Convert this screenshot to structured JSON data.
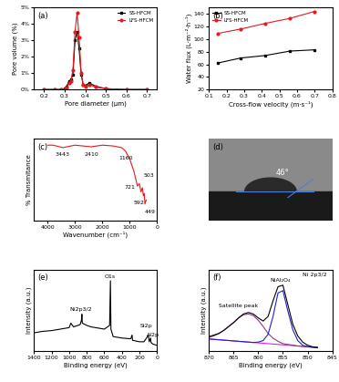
{
  "chart_data": [
    {
      "type": "line",
      "title": "(a)",
      "x_label": "Pore diameter (μm)",
      "y_label": "Pore volume (%)",
      "x": [
        0.2,
        0.25,
        0.28,
        0.3,
        0.31,
        0.32,
        0.33,
        0.34,
        0.35,
        0.36,
        0.37,
        0.38,
        0.39,
        0.4,
        0.42,
        0.45,
        0.5,
        0.6,
        0.7
      ],
      "series": [
        {
          "name": "SS-HFCM",
          "color": "#000000",
          "marker": "square",
          "values": [
            0,
            0,
            0,
            0.05,
            0.2,
            0.5,
            0.6,
            0.9,
            3.0,
            3.5,
            2.5,
            0.9,
            0.3,
            0.25,
            0.4,
            0.2,
            0.05,
            0,
            0
          ]
        },
        {
          "name": "LFS-HFCM",
          "color": "#e31a1c",
          "marker": "circle",
          "values": [
            0,
            0,
            0,
            0,
            0.1,
            0.4,
            0.5,
            1.2,
            3.5,
            4.7,
            3.2,
            1.0,
            0.3,
            0.2,
            0.3,
            0.15,
            0.05,
            0,
            0
          ]
        }
      ],
      "xlim": [
        0.15,
        0.75
      ],
      "xticks": [
        0.2,
        0.3,
        0.4,
        0.5,
        0.6,
        0.7
      ],
      "ylim": [
        0,
        5
      ],
      "yticks": [
        {
          "value": 0,
          "label": "0%"
        },
        {
          "value": 1,
          "label": "1%"
        },
        {
          "value": 2,
          "label": "2%"
        },
        {
          "value": 3,
          "label": "3%"
        },
        {
          "value": 4,
          "label": "4%"
        },
        {
          "value": 5,
          "label": "5%"
        }
      ],
      "legend": "upper right"
    },
    {
      "type": "line",
      "title": "(b)",
      "x_label": "Cross-flow velocity (m·s⁻¹)",
      "y_label": "Water flux (L·m⁻²·h⁻¹)",
      "x": [
        0.15,
        0.28,
        0.42,
        0.56,
        0.7
      ],
      "series": [
        {
          "name": "SS-HFCM",
          "color": "#000000",
          "marker": "square",
          "values": [
            62,
            70,
            74,
            81,
            83
          ]
        },
        {
          "name": "LFS-HFCM",
          "color": "#e31a1c",
          "marker": "circle",
          "values": [
            109,
            116,
            125,
            133,
            144
          ]
        }
      ],
      "xlim": [
        0.1,
        0.8
      ],
      "xticks": [
        0.1,
        0.2,
        0.3,
        0.4,
        0.5,
        0.6,
        0.7,
        0.8
      ],
      "ylim": [
        20,
        150
      ],
      "yticks": [
        20,
        40,
        60,
        80,
        100,
        120,
        140
      ],
      "legend": "upper left"
    },
    {
      "type": "line",
      "title": "(c)",
      "x_label": "Wavenumber (cm⁻¹)",
      "y_label": "% Transmitance",
      "x": [
        4000,
        3800,
        3443,
        3000,
        2410,
        2000,
        1600,
        1300,
        1160,
        1000,
        850,
        721,
        650,
        592,
        540,
        503,
        470,
        449,
        400
      ],
      "series": [
        {
          "color": "#e31a1c",
          "values": [
            92,
            92,
            89,
            92,
            90,
            92,
            91,
            89,
            85,
            75,
            60,
            42,
            45,
            35,
            40,
            30,
            33,
            20,
            25
          ]
        }
      ],
      "xlim": [
        4500,
        0
      ],
      "xticks": [
        4000,
        3000,
        2000,
        1000,
        0
      ],
      "ylim": [
        0,
        100
      ],
      "tick_labels": "x",
      "annotations": [
        {
          "text": "3443",
          "x": 3443,
          "y": 80
        },
        {
          "text": "2410",
          "x": 2410,
          "y": 80
        },
        {
          "text": "1160",
          "x": 1160,
          "y": 76
        },
        {
          "text": "721",
          "x": 1000,
          "y": 40
        },
        {
          "text": "592",
          "x": 650,
          "y": 22
        },
        {
          "text": "503",
          "x": 300,
          "y": 55
        },
        {
          "text": "449",
          "x": 250,
          "y": 10
        }
      ]
    },
    {
      "type": "image",
      "title": "(d)",
      "annotations": [
        "46°"
      ]
    },
    {
      "type": "line",
      "title": "(e)",
      "x_label": "Binding energy (eV)",
      "y_label": "Intensity (a.u.)",
      "x": [
        1400,
        1300,
        1200,
        1100,
        1000,
        980,
        950,
        875,
        860,
        855,
        850,
        800,
        750,
        700,
        600,
        540,
        531,
        525,
        500,
        400,
        300,
        285,
        280,
        200,
        150,
        110,
        100,
        90,
        74,
        70,
        50,
        0
      ],
      "series": [
        {
          "color": "#000000",
          "values": [
            0.25,
            0.27,
            0.28,
            0.3,
            0.32,
            0.38,
            0.33,
            0.36,
            0.42,
            0.5,
            0.38,
            0.35,
            0.33,
            0.32,
            0.3,
            0.35,
            0.95,
            0.3,
            0.2,
            0.18,
            0.17,
            0.22,
            0.15,
            0.13,
            0.13,
            0.2,
            0.22,
            0.13,
            0.18,
            0.12,
            0.1,
            0.08
          ]
        }
      ],
      "xlim": [
        1400,
        0
      ],
      "xticks": [
        1400,
        1200,
        1000,
        800,
        600,
        400,
        200,
        0
      ],
      "ylim": [
        0,
        1.1
      ],
      "tick_labels": "x",
      "annotations": [
        {
          "text": "O1s",
          "x": 531,
          "y": 1.0
        },
        {
          "text": "Ni2p3/2",
          "x": 870,
          "y": 0.56
        },
        {
          "text": "Si2p",
          "x": 120,
          "y": 0.34
        },
        {
          "text": "Al2p",
          "x": 50,
          "y": 0.22
        }
      ]
    },
    {
      "type": "line",
      "title": "(f)",
      "x_label": "Binding energy (eV)",
      "y_label": "Intensity (a.u.)",
      "x": [
        870,
        869,
        868,
        867,
        866,
        865,
        864,
        863,
        862,
        861,
        860,
        859,
        858,
        857,
        856,
        855,
        854,
        853,
        852,
        851,
        850,
        849,
        848
      ],
      "series": [
        {
          "color": "#e020e0",
          "values": [
            0.26,
            0.255,
            0.25,
            0.245,
            0.24,
            0.235,
            0.23,
            0.225,
            0.22,
            0.215,
            0.21,
            0.205,
            0.2,
            0.195,
            0.19,
            0.185,
            0.18,
            0.175,
            0.17,
            0.165,
            0.16,
            0.155,
            0.15
          ]
        },
        {
          "color": "#8b3a8b",
          "values": [
            0.28,
            0.3,
            0.33,
            0.37,
            0.42,
            0.47,
            0.53,
            0.57,
            0.58,
            0.56,
            0.5,
            0.42,
            0.33,
            0.27,
            0.23,
            0.2,
            0.19,
            0.18,
            0.17,
            0.165,
            0.16,
            0.155,
            0.15
          ]
        },
        {
          "color": "#1f1fd0",
          "values": [
            0.26,
            0.255,
            0.25,
            0.245,
            0.24,
            0.235,
            0.23,
            0.225,
            0.22,
            0.215,
            0.22,
            0.24,
            0.32,
            0.55,
            0.85,
            0.88,
            0.62,
            0.38,
            0.24,
            0.18,
            0.16,
            0.155,
            0.15
          ]
        },
        {
          "color": "#000000",
          "values": [
            0.29,
            0.31,
            0.33,
            0.37,
            0.42,
            0.47,
            0.53,
            0.58,
            0.6,
            0.58,
            0.53,
            0.49,
            0.55,
            0.75,
            0.93,
            0.95,
            0.7,
            0.45,
            0.3,
            0.22,
            0.18,
            0.16,
            0.15
          ]
        }
      ],
      "xlim": [
        870,
        845
      ],
      "xticks": [
        870,
        865,
        860,
        855,
        850,
        845
      ],
      "ylim": [
        0.1,
        1.15
      ],
      "tick_labels": "x",
      "annotations": [
        {
          "text": "Satellite peak",
          "x": 864,
          "y": 0.68
        },
        {
          "text": "NiAl₂O₄",
          "x": 855.5,
          "y": 1.01
        },
        {
          "text": "Ni 2p3/2",
          "x": 848.5,
          "y": 1.08
        }
      ]
    }
  ]
}
